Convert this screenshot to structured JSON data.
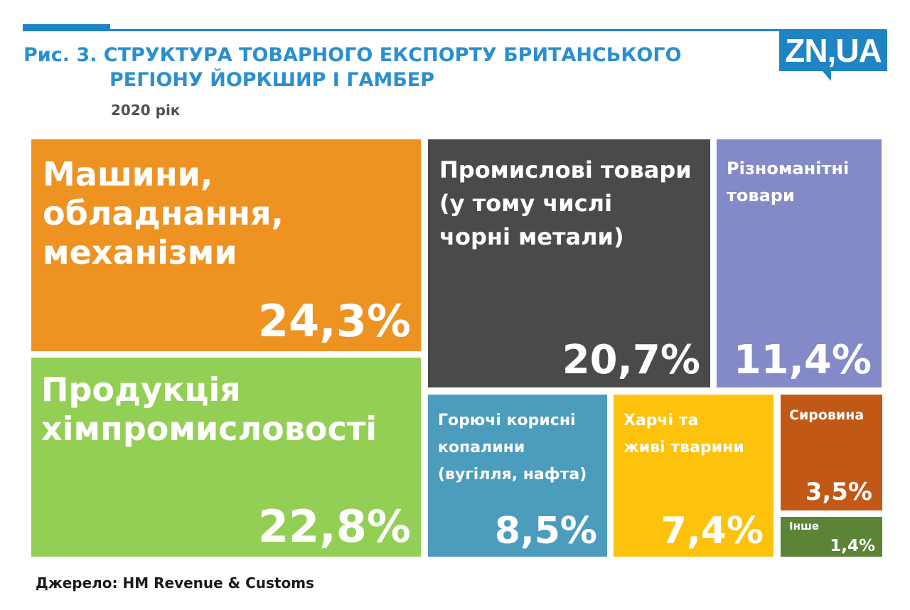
{
  "header": {
    "title_line1": "Рис. 3. СТРУКТУРА ТОВАРНОГО ЕКСПОРТУ БРИТАНСЬКОГО",
    "title_line2": "РЕГІОНУ ЙОРКШИР І ГАМБЕР",
    "subtitle": "2020 рік",
    "logo": "ZN,UA"
  },
  "footer": {
    "source": "Джерело: HM Revenue & Customs"
  },
  "colors": {
    "accent": "#1f84c4",
    "title": "#2b8fcf"
  },
  "chart_data": {
    "type": "treemap",
    "unit": "%",
    "items": [
      {
        "id": "machinery",
        "label": "Машини,\nобладнання,\nмеханізми",
        "value": 24.3,
        "value_label": "24,3%",
        "color": "#ee9222"
      },
      {
        "id": "chemicals",
        "label": "Продукція\nхімпромисловості",
        "value": 22.8,
        "value_label": "22,8%",
        "color": "#94cf55"
      },
      {
        "id": "manufactured",
        "label": "Промислові товари\n(у тому числі\nчорні метали)",
        "value": 20.7,
        "value_label": "20,7%",
        "color": "#4a4a4a"
      },
      {
        "id": "misc",
        "label": "Різноманітні\nтовари",
        "value": 11.4,
        "value_label": "11,4%",
        "color": "#8489c7"
      },
      {
        "id": "fuels",
        "label": "Горючі корисні\nкопалини\n(вугілля, нафта)",
        "value": 8.5,
        "value_label": "8,5%",
        "color": "#4c9cbd"
      },
      {
        "id": "food",
        "label": "Харчі та\nживі тварини",
        "value": 7.4,
        "value_label": "7,4%",
        "color": "#fdc20c"
      },
      {
        "id": "raw",
        "label": "Сировина",
        "value": 3.5,
        "value_label": "3,5%",
        "color": "#c25816"
      },
      {
        "id": "other",
        "label": "Інше",
        "value": 1.4,
        "value_label": "1,4%",
        "color": "#5b8436"
      }
    ]
  }
}
